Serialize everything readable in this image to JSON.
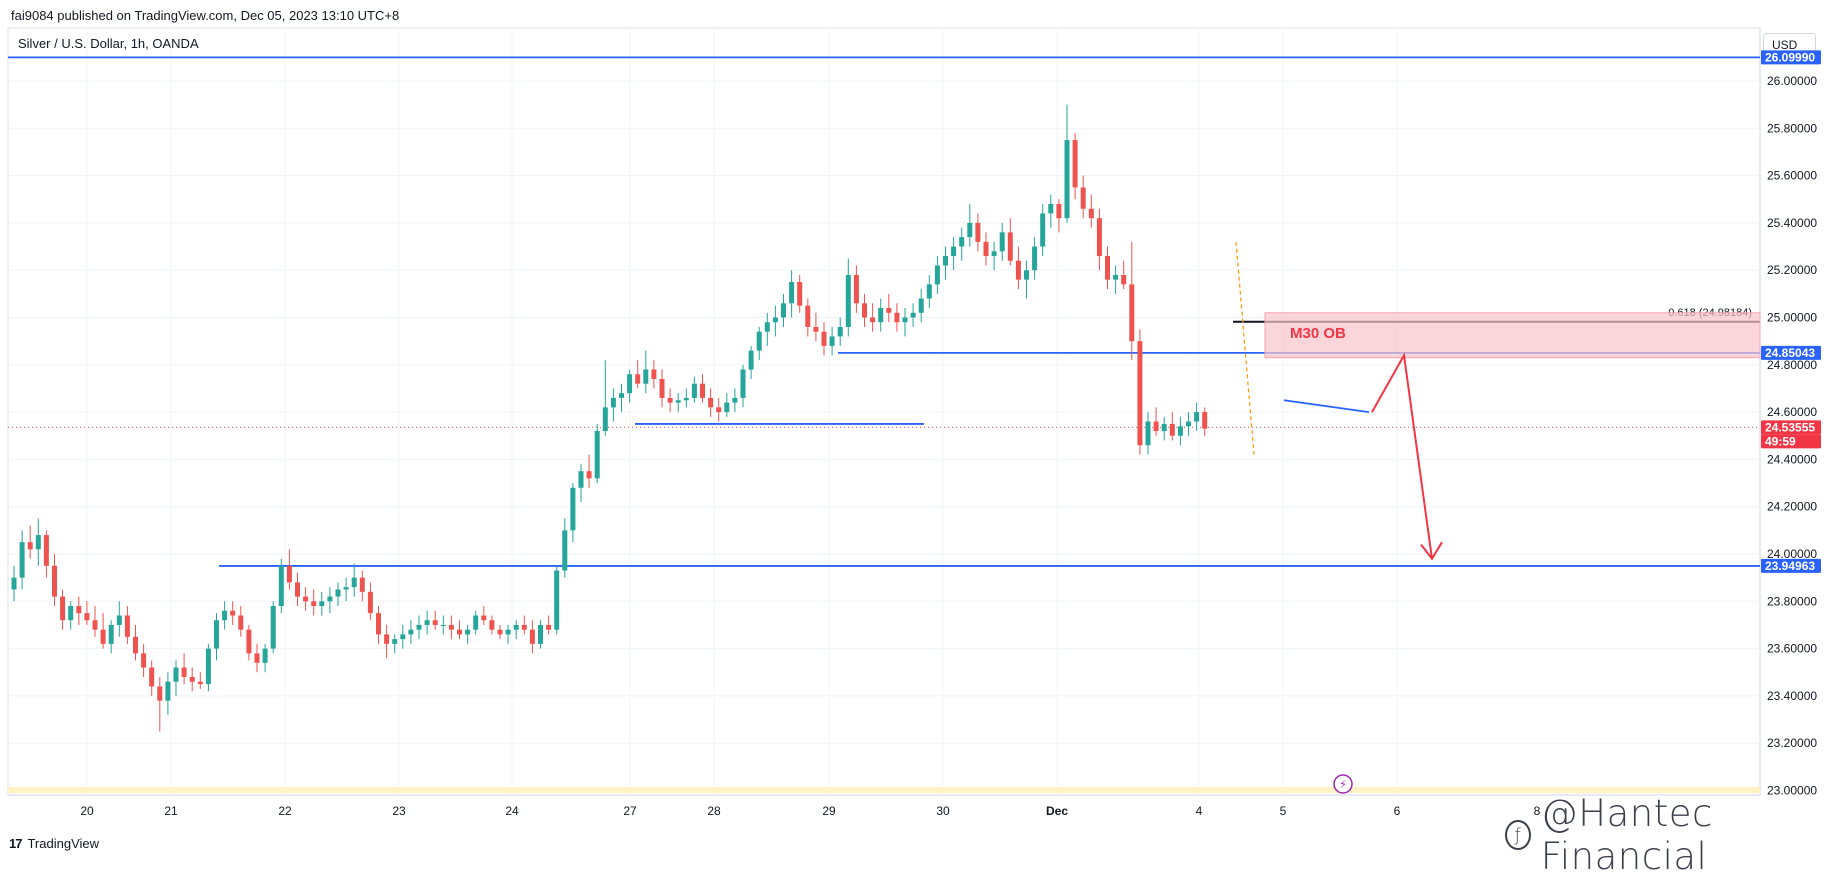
{
  "header": {
    "published_line": "fai9084 published on TradingView.com, Dec 05, 2023 13:10 UTC+8",
    "symbol_line": "Silver / U.S. Dollar, 1h, OANDA",
    "currency": "USD"
  },
  "footer": {
    "logo_text": "TradingView",
    "watermark": "@Hantec Financial"
  },
  "colors": {
    "up": "#26a69a",
    "down": "#ef5350",
    "level_line": "#2962ff",
    "price_dotted": "#ef5350",
    "ob_fill": "#f8c4cb",
    "arrow": "#f23645"
  },
  "chart_data": {
    "type": "candlestick",
    "symbol": "Silver / U.S. Dollar",
    "interval": "1h",
    "exchange": "OANDA",
    "ylim": [
      23.0,
      26.1
    ],
    "y_ticks": [
      "26.00000",
      "25.80000",
      "25.60000",
      "25.40000",
      "25.20000",
      "25.00000",
      "24.80000",
      "24.60000",
      "24.40000",
      "24.20000",
      "24.00000",
      "23.80000",
      "23.60000",
      "23.40000",
      "23.20000",
      "23.00000"
    ],
    "x_ticks": [
      "20",
      "21",
      "22",
      "23",
      "24",
      "27",
      "28",
      "29",
      "30",
      "Dec",
      "4",
      "5",
      "6",
      "8"
    ],
    "price_labels": [
      {
        "text": "24.85043",
        "value": 24.85043,
        "style": "blue"
      },
      {
        "text": "24.53555",
        "value": 24.53555,
        "style": "red"
      },
      {
        "text": "49:59",
        "style": "red-sub"
      },
      {
        "text": "23.94963",
        "value": 23.94963,
        "style": "blue"
      },
      {
        "text": "26.09990",
        "value": 26.0999,
        "style": "blue"
      }
    ],
    "horizontal_levels": [
      {
        "name": "top-resistance",
        "value": 26.0999
      },
      {
        "name": "resistance-24-85",
        "value": 24.85043
      },
      {
        "name": "support-24-55",
        "value": 24.55
      },
      {
        "name": "support-23-95",
        "value": 23.94963
      }
    ],
    "annotations": {
      "fib_label": "0.618 (24.98184)",
      "fib_value": 24.98184,
      "ob_label": "M30 OB",
      "ob_top": 25.02,
      "ob_bottom": 24.83,
      "current_price": 24.53555
    },
    "candles": [
      [
        23.85,
        23.95,
        23.8,
        23.9
      ],
      [
        23.9,
        24.1,
        23.85,
        24.05
      ],
      [
        24.05,
        24.12,
        23.98,
        24.02
      ],
      [
        24.02,
        24.15,
        23.95,
        24.08
      ],
      [
        24.08,
        24.1,
        23.9,
        23.95
      ],
      [
        23.95,
        24.0,
        23.78,
        23.82
      ],
      [
        23.82,
        23.85,
        23.68,
        23.72
      ],
      [
        23.72,
        23.8,
        23.68,
        23.78
      ],
      [
        23.78,
        23.82,
        23.7,
        23.75
      ],
      [
        23.75,
        23.8,
        23.7,
        23.72
      ],
      [
        23.72,
        23.78,
        23.65,
        23.68
      ],
      [
        23.68,
        23.75,
        23.6,
        23.62
      ],
      [
        23.62,
        23.72,
        23.58,
        23.7
      ],
      [
        23.7,
        23.8,
        23.65,
        23.74
      ],
      [
        23.74,
        23.78,
        23.62,
        23.65
      ],
      [
        23.65,
        23.7,
        23.55,
        23.58
      ],
      [
        23.58,
        23.62,
        23.48,
        23.52
      ],
      [
        23.52,
        23.55,
        23.4,
        23.44
      ],
      [
        23.44,
        23.48,
        23.25,
        23.38
      ],
      [
        23.38,
        23.5,
        23.32,
        23.46
      ],
      [
        23.46,
        23.55,
        23.4,
        23.52
      ],
      [
        23.52,
        23.58,
        23.45,
        23.48
      ],
      [
        23.48,
        23.52,
        23.42,
        23.46
      ],
      [
        23.46,
        23.5,
        23.43,
        23.45
      ],
      [
        23.45,
        23.62,
        23.42,
        23.6
      ],
      [
        23.6,
        23.75,
        23.55,
        23.72
      ],
      [
        23.72,
        23.8,
        23.68,
        23.76
      ],
      [
        23.76,
        23.8,
        23.7,
        23.74
      ],
      [
        23.74,
        23.78,
        23.65,
        23.68
      ],
      [
        23.68,
        23.7,
        23.55,
        23.58
      ],
      [
        23.58,
        23.62,
        23.5,
        23.54
      ],
      [
        23.54,
        23.62,
        23.5,
        23.6
      ],
      [
        23.6,
        23.8,
        23.58,
        23.78
      ],
      [
        23.78,
        23.98,
        23.75,
        23.95
      ],
      [
        23.95,
        24.02,
        23.85,
        23.88
      ],
      [
        23.88,
        23.92,
        23.78,
        23.82
      ],
      [
        23.82,
        23.86,
        23.76,
        23.8
      ],
      [
        23.8,
        23.85,
        23.74,
        23.78
      ],
      [
        23.78,
        23.84,
        23.74,
        23.8
      ],
      [
        23.8,
        23.86,
        23.75,
        23.82
      ],
      [
        23.82,
        23.88,
        23.78,
        23.85
      ],
      [
        23.85,
        23.9,
        23.8,
        23.86
      ],
      [
        23.86,
        23.96,
        23.82,
        23.9
      ],
      [
        23.9,
        23.93,
        23.8,
        23.84
      ],
      [
        23.84,
        23.88,
        23.72,
        23.75
      ],
      [
        23.75,
        23.78,
        23.62,
        23.66
      ],
      [
        23.66,
        23.7,
        23.56,
        23.62
      ],
      [
        23.62,
        23.66,
        23.58,
        23.64
      ],
      [
        23.64,
        23.7,
        23.6,
        23.66
      ],
      [
        23.66,
        23.72,
        23.62,
        23.68
      ],
      [
        23.68,
        23.74,
        23.64,
        23.7
      ],
      [
        23.7,
        23.76,
        23.66,
        23.72
      ],
      [
        23.72,
        23.76,
        23.68,
        23.7
      ],
      [
        23.7,
        23.74,
        23.66,
        23.7
      ],
      [
        23.7,
        23.74,
        23.64,
        23.68
      ],
      [
        23.68,
        23.72,
        23.64,
        23.66
      ],
      [
        23.66,
        23.7,
        23.62,
        23.68
      ],
      [
        23.68,
        23.76,
        23.66,
        23.74
      ],
      [
        23.74,
        23.78,
        23.7,
        23.72
      ],
      [
        23.72,
        23.74,
        23.66,
        23.68
      ],
      [
        23.68,
        23.7,
        23.64,
        23.66
      ],
      [
        23.66,
        23.7,
        23.62,
        23.68
      ],
      [
        23.68,
        23.72,
        23.64,
        23.7
      ],
      [
        23.7,
        23.74,
        23.66,
        23.68
      ],
      [
        23.68,
        23.72,
        23.58,
        23.62
      ],
      [
        23.62,
        23.72,
        23.6,
        23.7
      ],
      [
        23.7,
        23.74,
        23.66,
        23.68
      ],
      [
        23.68,
        23.95,
        23.66,
        23.93
      ],
      [
        23.93,
        24.15,
        23.9,
        24.1
      ],
      [
        24.1,
        24.3,
        24.05,
        24.28
      ],
      [
        24.28,
        24.38,
        24.22,
        24.35
      ],
      [
        24.35,
        24.42,
        24.28,
        24.32
      ],
      [
        24.32,
        24.55,
        24.3,
        24.52
      ],
      [
        24.52,
        24.82,
        24.5,
        24.62
      ],
      [
        24.62,
        24.7,
        24.56,
        24.66
      ],
      [
        24.66,
        24.72,
        24.6,
        24.68
      ],
      [
        24.68,
        24.78,
        24.64,
        24.76
      ],
      [
        24.76,
        24.82,
        24.7,
        24.72
      ],
      [
        24.72,
        24.86,
        24.68,
        24.78
      ],
      [
        24.78,
        24.82,
        24.7,
        24.74
      ],
      [
        24.74,
        24.78,
        24.62,
        24.66
      ],
      [
        24.66,
        24.7,
        24.6,
        24.64
      ],
      [
        24.64,
        24.68,
        24.6,
        24.65
      ],
      [
        24.65,
        24.7,
        24.62,
        24.66
      ],
      [
        24.66,
        24.75,
        24.64,
        24.72
      ],
      [
        24.72,
        24.76,
        24.64,
        24.66
      ],
      [
        24.66,
        24.7,
        24.58,
        24.62
      ],
      [
        24.62,
        24.66,
        24.56,
        24.6
      ],
      [
        24.6,
        24.68,
        24.58,
        24.64
      ],
      [
        24.64,
        24.7,
        24.6,
        24.66
      ],
      [
        24.66,
        24.8,
        24.62,
        24.78
      ],
      [
        24.78,
        24.88,
        24.74,
        24.86
      ],
      [
        24.86,
        24.96,
        24.82,
        24.94
      ],
      [
        24.94,
        25.02,
        24.88,
        24.98
      ],
      [
        24.98,
        25.05,
        24.92,
        25.0
      ],
      [
        25.0,
        25.1,
        24.96,
        25.06
      ],
      [
        25.06,
        25.2,
        25.0,
        25.15
      ],
      [
        25.15,
        25.18,
        25.02,
        25.05
      ],
      [
        25.05,
        25.08,
        24.92,
        24.96
      ],
      [
        24.96,
        25.02,
        24.9,
        24.94
      ],
      [
        24.94,
        24.98,
        24.84,
        24.88
      ],
      [
        24.88,
        24.96,
        24.84,
        24.92
      ],
      [
        24.92,
        25.0,
        24.88,
        24.96
      ],
      [
        24.96,
        25.25,
        24.92,
        25.18
      ],
      [
        25.18,
        25.22,
        25.02,
        25.06
      ],
      [
        25.06,
        25.1,
        24.96,
        25.0
      ],
      [
        25.0,
        25.06,
        24.94,
        24.98
      ],
      [
        24.98,
        25.08,
        24.94,
        25.04
      ],
      [
        25.04,
        25.1,
        24.98,
        25.02
      ],
      [
        25.02,
        25.06,
        24.94,
        24.98
      ],
      [
        24.98,
        25.04,
        24.92,
        25.0
      ],
      [
        25.0,
        25.06,
        24.96,
        25.02
      ],
      [
        25.02,
        25.12,
        24.98,
        25.08
      ],
      [
        25.08,
        25.18,
        25.04,
        25.14
      ],
      [
        25.14,
        25.26,
        25.1,
        25.22
      ],
      [
        25.22,
        25.3,
        25.16,
        25.26
      ],
      [
        25.26,
        25.34,
        25.2,
        25.3
      ],
      [
        25.3,
        25.38,
        25.24,
        25.34
      ],
      [
        25.34,
        25.48,
        25.3,
        25.4
      ],
      [
        25.4,
        25.44,
        25.28,
        25.32
      ],
      [
        25.32,
        25.36,
        25.22,
        25.26
      ],
      [
        25.26,
        25.32,
        25.2,
        25.28
      ],
      [
        25.28,
        25.4,
        25.24,
        25.36
      ],
      [
        25.36,
        25.42,
        25.22,
        25.24
      ],
      [
        25.24,
        25.3,
        25.12,
        25.16
      ],
      [
        25.16,
        25.24,
        25.08,
        25.2
      ],
      [
        25.2,
        25.34,
        25.16,
        25.3
      ],
      [
        25.3,
        25.48,
        25.26,
        25.44
      ],
      [
        25.44,
        25.52,
        25.38,
        25.48
      ],
      [
        25.48,
        25.5,
        25.36,
        25.42
      ],
      [
        25.42,
        25.9,
        25.4,
        25.75
      ],
      [
        25.75,
        25.78,
        25.5,
        25.55
      ],
      [
        25.55,
        25.6,
        25.42,
        25.46
      ],
      [
        25.46,
        25.52,
        25.38,
        25.42
      ],
      [
        25.42,
        25.46,
        25.2,
        25.26
      ],
      [
        25.26,
        25.3,
        25.12,
        25.16
      ],
      [
        25.16,
        25.22,
        25.1,
        25.18
      ],
      [
        25.18,
        25.24,
        25.12,
        25.14
      ],
      [
        25.14,
        25.32,
        24.82,
        24.9
      ],
      [
        24.9,
        24.95,
        24.42,
        24.46
      ],
      [
        24.46,
        24.6,
        24.42,
        24.56
      ],
      [
        24.56,
        24.62,
        24.5,
        24.52
      ],
      [
        24.52,
        24.58,
        24.48,
        24.55
      ],
      [
        24.55,
        24.6,
        24.48,
        24.5
      ],
      [
        24.5,
        24.58,
        24.46,
        24.54
      ],
      [
        24.54,
        24.6,
        24.5,
        24.56
      ],
      [
        24.56,
        24.64,
        24.52,
        24.6
      ],
      [
        24.6,
        24.62,
        24.5,
        24.53
      ]
    ]
  }
}
